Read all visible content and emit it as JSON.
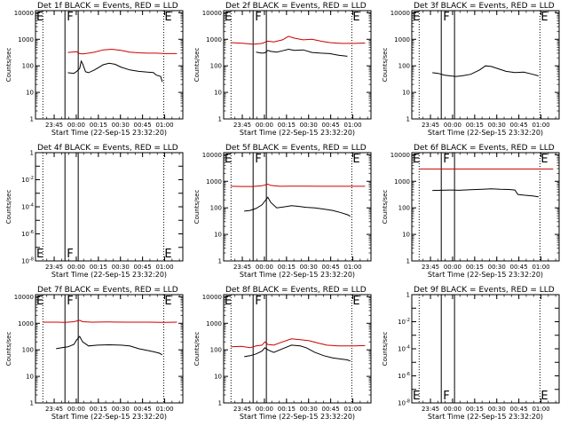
{
  "chart_data": {
    "type": "line",
    "common": {
      "xlabel": "Start Time (22-Sep-15 23:32:20)",
      "ylabel": "Counts/sec",
      "x_tick_labels": [
        "23:45",
        "00:00",
        "00:15",
        "00:30",
        "00:45",
        "01:00"
      ],
      "x_tick_minutes": [
        12.67,
        27.67,
        42.67,
        57.67,
        72.67,
        87.67
      ],
      "xlim_minutes": [
        0,
        100
      ],
      "event_lines_minutes": {
        "dotted": [
          5,
          87
        ],
        "solid": [
          20,
          29
        ]
      },
      "legend": "BLACK = Events, RED = LLD",
      "colors": {
        "events": "#000000",
        "lld": "#cc0000"
      },
      "y_tick_labels_count": [
        "1",
        "10",
        "100",
        "1000",
        "10000"
      ]
    },
    "panels": [
      {
        "title": "Det 1f BLACK = Events, RED = LLD",
        "scale": "counts",
        "ylim": [
          1,
          12000
        ],
        "letters": [
          "E",
          "F",
          "E"
        ],
        "lld": [
          [
            22,
            320
          ],
          [
            28,
            340
          ],
          [
            30,
            290
          ],
          [
            32,
            280
          ],
          [
            36,
            300
          ],
          [
            40,
            330
          ],
          [
            46,
            400
          ],
          [
            52,
            420
          ],
          [
            58,
            380
          ],
          [
            64,
            330
          ],
          [
            70,
            310
          ],
          [
            76,
            300
          ],
          [
            82,
            300
          ],
          [
            88,
            290
          ],
          [
            96,
            290
          ]
        ],
        "events": [
          [
            22,
            55
          ],
          [
            26,
            52
          ],
          [
            28,
            62
          ],
          [
            30,
            80
          ],
          [
            31,
            150
          ],
          [
            32,
            120
          ],
          [
            34,
            60
          ],
          [
            36,
            55
          ],
          [
            40,
            70
          ],
          [
            46,
            110
          ],
          [
            50,
            125
          ],
          [
            54,
            115
          ],
          [
            58,
            90
          ],
          [
            64,
            70
          ],
          [
            70,
            62
          ],
          [
            76,
            58
          ],
          [
            80,
            56
          ],
          [
            82,
            45
          ],
          [
            85,
            40
          ],
          [
            86,
            25
          ]
        ]
      },
      {
        "title": "Det 2f BLACK = Events, RED = LLD",
        "scale": "counts",
        "ylim": [
          1,
          12000
        ],
        "letters": [
          "E",
          "F",
          "E"
        ],
        "lld": [
          [
            5,
            750
          ],
          [
            14,
            700
          ],
          [
            20,
            650
          ],
          [
            26,
            700
          ],
          [
            30,
            850
          ],
          [
            34,
            800
          ],
          [
            40,
            950
          ],
          [
            44,
            1300
          ],
          [
            48,
            1100
          ],
          [
            54,
            950
          ],
          [
            60,
            1000
          ],
          [
            66,
            850
          ],
          [
            72,
            750
          ],
          [
            80,
            700
          ],
          [
            88,
            700
          ],
          [
            96,
            720
          ]
        ],
        "events": [
          [
            22,
            330
          ],
          [
            26,
            300
          ],
          [
            28,
            310
          ],
          [
            30,
            380
          ],
          [
            32,
            350
          ],
          [
            36,
            330
          ],
          [
            40,
            370
          ],
          [
            44,
            420
          ],
          [
            48,
            380
          ],
          [
            54,
            400
          ],
          [
            60,
            320
          ],
          [
            66,
            300
          ],
          [
            72,
            290
          ],
          [
            78,
            250
          ],
          [
            84,
            230
          ]
        ]
      },
      {
        "title": "Det 3f BLACK = Events, RED = LLD",
        "scale": "counts",
        "ylim": [
          1,
          12000
        ],
        "letters": [
          "E",
          "F",
          "E"
        ],
        "lld": [],
        "events": [
          [
            14,
            55
          ],
          [
            18,
            52
          ],
          [
            22,
            45
          ],
          [
            26,
            42
          ],
          [
            30,
            40
          ],
          [
            34,
            42
          ],
          [
            40,
            48
          ],
          [
            46,
            70
          ],
          [
            50,
            100
          ],
          [
            54,
            95
          ],
          [
            58,
            80
          ],
          [
            64,
            62
          ],
          [
            70,
            56
          ],
          [
            76,
            58
          ],
          [
            82,
            48
          ],
          [
            86,
            42
          ]
        ]
      },
      {
        "title": "Det 4f BLACK = Events, RED = LLD",
        "scale": "exp",
        "ylim": [
          -8,
          0
        ],
        "letters": [
          "E",
          "F",
          "E"
        ],
        "lld": [],
        "events": []
      },
      {
        "title": "Det 5f BLACK = Events, RED = LLD",
        "scale": "counts",
        "ylim": [
          1,
          12000
        ],
        "letters": [
          "E",
          "F",
          "E"
        ],
        "lld": [
          [
            5,
            650
          ],
          [
            12,
            640
          ],
          [
            20,
            640
          ],
          [
            26,
            680
          ],
          [
            30,
            780
          ],
          [
            32,
            700
          ],
          [
            38,
            650
          ],
          [
            46,
            660
          ],
          [
            56,
            660
          ],
          [
            66,
            650
          ],
          [
            76,
            650
          ],
          [
            88,
            650
          ],
          [
            96,
            650
          ]
        ],
        "events": [
          [
            14,
            75
          ],
          [
            18,
            80
          ],
          [
            22,
            95
          ],
          [
            26,
            130
          ],
          [
            28,
            180
          ],
          [
            30,
            250
          ],
          [
            32,
            160
          ],
          [
            36,
            100
          ],
          [
            42,
            110
          ],
          [
            46,
            120
          ],
          [
            50,
            115
          ],
          [
            56,
            105
          ],
          [
            62,
            100
          ],
          [
            68,
            90
          ],
          [
            74,
            80
          ],
          [
            80,
            65
          ],
          [
            84,
            55
          ],
          [
            86,
            48
          ]
        ]
      },
      {
        "title": "Det 6f BLACK = Events, RED = LLD",
        "scale": "counts",
        "ylim": [
          1,
          12000
        ],
        "letters": [
          "E",
          "F",
          "E"
        ],
        "lld": [
          [
            5,
            2900
          ],
          [
            30,
            2900
          ],
          [
            60,
            2900
          ],
          [
            96,
            2900
          ]
        ],
        "events": [
          [
            14,
            450
          ],
          [
            20,
            460
          ],
          [
            26,
            470
          ],
          [
            32,
            460
          ],
          [
            40,
            480
          ],
          [
            48,
            500
          ],
          [
            54,
            520
          ],
          [
            60,
            500
          ],
          [
            66,
            490
          ],
          [
            70,
            470
          ],
          [
            72,
            320
          ],
          [
            76,
            300
          ],
          [
            82,
            280
          ],
          [
            86,
            260
          ]
        ]
      },
      {
        "title": "Det 7f BLACK = Events, RED = LLD",
        "scale": "counts",
        "ylim": [
          1,
          12000
        ],
        "letters": [
          "E",
          "F",
          "E"
        ],
        "lld": [
          [
            5,
            1100
          ],
          [
            14,
            1100
          ],
          [
            20,
            1080
          ],
          [
            26,
            1150
          ],
          [
            30,
            1300
          ],
          [
            32,
            1150
          ],
          [
            38,
            1100
          ],
          [
            50,
            1120
          ],
          [
            62,
            1100
          ],
          [
            76,
            1100
          ],
          [
            88,
            1090
          ],
          [
            96,
            1100
          ]
        ],
        "events": [
          [
            14,
            110
          ],
          [
            18,
            120
          ],
          [
            22,
            130
          ],
          [
            26,
            160
          ],
          [
            28,
            240
          ],
          [
            30,
            320
          ],
          [
            32,
            200
          ],
          [
            36,
            140
          ],
          [
            42,
            150
          ],
          [
            50,
            155
          ],
          [
            58,
            150
          ],
          [
            64,
            140
          ],
          [
            70,
            110
          ],
          [
            76,
            95
          ],
          [
            80,
            85
          ],
          [
            84,
            75
          ],
          [
            86,
            65
          ]
        ]
      },
      {
        "title": "Det 8f BLACK = Events, RED = LLD",
        "scale": "counts",
        "ylim": [
          1,
          12000
        ],
        "letters": [
          "E",
          "F",
          "E"
        ],
        "lld": [
          [
            5,
            130
          ],
          [
            12,
            135
          ],
          [
            18,
            120
          ],
          [
            22,
            140
          ],
          [
            26,
            150
          ],
          [
            28,
            200
          ],
          [
            30,
            160
          ],
          [
            34,
            150
          ],
          [
            40,
            200
          ],
          [
            46,
            260
          ],
          [
            52,
            240
          ],
          [
            58,
            220
          ],
          [
            64,
            180
          ],
          [
            70,
            150
          ],
          [
            78,
            140
          ],
          [
            88,
            140
          ],
          [
            96,
            145
          ]
        ],
        "events": [
          [
            14,
            55
          ],
          [
            18,
            60
          ],
          [
            22,
            70
          ],
          [
            26,
            90
          ],
          [
            28,
            120
          ],
          [
            30,
            100
          ],
          [
            34,
            80
          ],
          [
            40,
            110
          ],
          [
            46,
            150
          ],
          [
            52,
            140
          ],
          [
            56,
            120
          ],
          [
            62,
            80
          ],
          [
            68,
            60
          ],
          [
            74,
            50
          ],
          [
            80,
            45
          ],
          [
            84,
            42
          ],
          [
            86,
            38
          ]
        ]
      },
      {
        "title": "Det 9f BLACK = Events, RED = LLD",
        "scale": "exp",
        "ylim": [
          -8,
          0
        ],
        "letters": [
          "E",
          "F",
          "E"
        ],
        "lld": [],
        "events": []
      }
    ]
  }
}
